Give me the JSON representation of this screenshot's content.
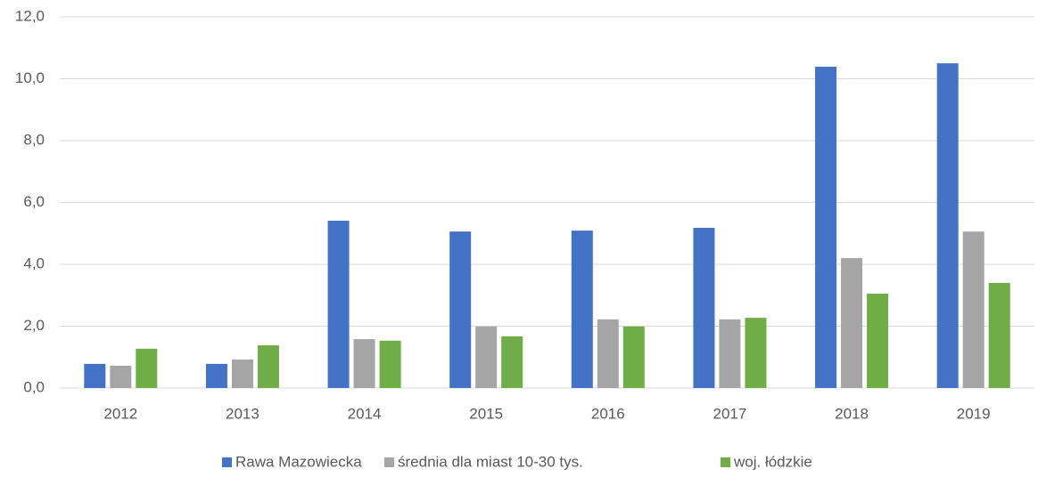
{
  "chart_data": {
    "type": "bar",
    "categories": [
      "2012",
      "2013",
      "2014",
      "2015",
      "2016",
      "2017",
      "2018",
      "2019"
    ],
    "series": [
      {
        "name": "Rawa Mazowiecka",
        "color": "#4472c4",
        "values": [
          0.78,
          0.78,
          5.41,
          5.06,
          5.09,
          5.18,
          10.39,
          10.5
        ]
      },
      {
        "name": "średnia dla miast 10-30 tys.",
        "color": "#a5a5a5",
        "values": [
          0.72,
          0.92,
          1.58,
          1.99,
          2.22,
          2.22,
          4.2,
          5.06
        ]
      },
      {
        "name": "woj. łódzkie",
        "color": "#70ad47",
        "values": [
          1.27,
          1.38,
          1.53,
          1.67,
          1.99,
          2.27,
          3.05,
          3.4
        ]
      }
    ],
    "ylim": [
      0,
      12
    ],
    "yticks": [
      {
        "value": 0,
        "label": "0,0"
      },
      {
        "value": 2,
        "label": "2,0"
      },
      {
        "value": 4,
        "label": "4,0"
      },
      {
        "value": 6,
        "label": "6,0"
      },
      {
        "value": 8,
        "label": "8,0"
      },
      {
        "value": 10,
        "label": "10,0"
      },
      {
        "value": 12,
        "label": "12,0"
      }
    ],
    "grid": true,
    "legend": "bottom"
  }
}
